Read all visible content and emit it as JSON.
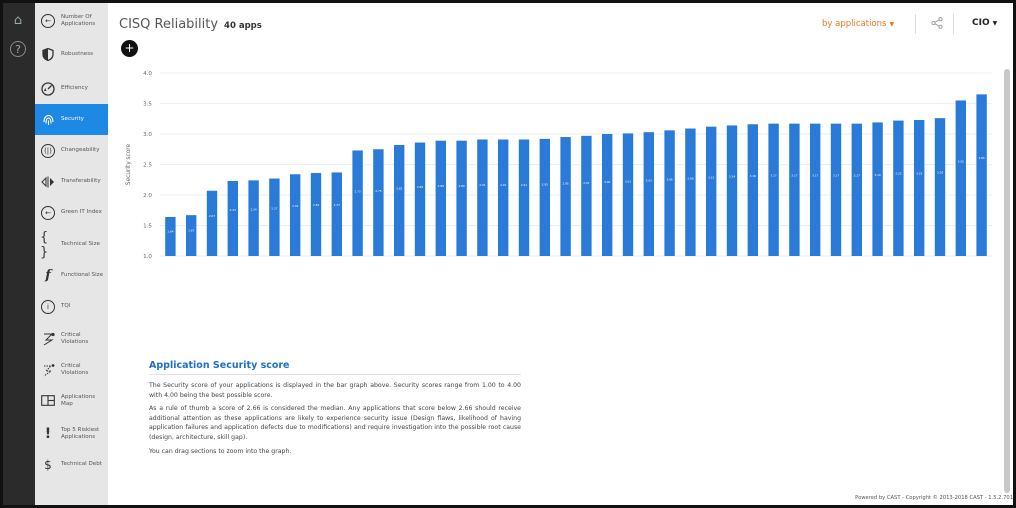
{
  "sidebar": {
    "items": [
      {
        "label": "Number Of Applications",
        "icon": "number-of-applications-icon"
      },
      {
        "label": "Robustness",
        "icon": "shield-icon"
      },
      {
        "label": "Efficiency",
        "icon": "speedometer-icon"
      },
      {
        "label": "Security",
        "icon": "fingerprint-icon",
        "active": true
      },
      {
        "label": "Changeability",
        "icon": "changeability-icon"
      },
      {
        "label": "Transferability",
        "icon": "transfer-icon"
      },
      {
        "label": "Green IT Index",
        "icon": "green-it-icon"
      },
      {
        "label": "Technical Size",
        "icon": "braces-icon"
      },
      {
        "label": "Functional Size",
        "icon": "function-icon"
      },
      {
        "label": "TQI",
        "icon": "tqi-icon"
      },
      {
        "label": "Critical Violations",
        "icon": "critical-violations-icon"
      },
      {
        "label": "Critical Violations",
        "icon": "critical-violations-trend-icon"
      },
      {
        "label": "Applications Map",
        "icon": "map-icon"
      },
      {
        "label": "Top 5 Riskiest Applications",
        "icon": "exclamation-icon"
      },
      {
        "label": "Technical Debt",
        "icon": "dollar-icon"
      }
    ]
  },
  "header": {
    "title": "CISQ Reliability",
    "app_count": "40 apps",
    "add_label": "+",
    "view_mode": "by applications",
    "role": "CIO"
  },
  "chart_data": {
    "type": "bar",
    "ylabel": "Security score",
    "ylim": [
      1.0,
      4.0
    ],
    "yticks": [
      "1.0",
      "1.5",
      "2.0",
      "2.5",
      "3.0",
      "3.5",
      "4.0"
    ],
    "categories": [
      "",
      "",
      "",
      "",
      "",
      "",
      "",
      "",
      "",
      "",
      "",
      "",
      "",
      "",
      "",
      "",
      "",
      "",
      "",
      "",
      "",
      "",
      "",
      "",
      "",
      "",
      "",
      "",
      "",
      "",
      "",
      "",
      "",
      "",
      "",
      "",
      "",
      "",
      "",
      ""
    ],
    "values": [
      1.64,
      1.67,
      2.07,
      2.23,
      2.24,
      2.27,
      2.34,
      2.36,
      2.37,
      2.73,
      2.75,
      2.82,
      2.86,
      2.89,
      2.89,
      2.91,
      2.91,
      2.91,
      2.92,
      2.95,
      2.97,
      3.0,
      3.01,
      3.03,
      3.06,
      3.09,
      3.12,
      3.14,
      3.16,
      3.17,
      3.17,
      3.17,
      3.17,
      3.17,
      3.19,
      3.22,
      3.23,
      3.26,
      3.55,
      3.65
    ],
    "grid": true,
    "bar_color": "#2a7ad8"
  },
  "description": {
    "heading": "Application Security score",
    "paragraphs": [
      "The Security score of your applications is displayed in the bar graph above. Security scores range from 1.00 to 4.00 with 4.00 being the best possible score.",
      "As a rule of thumb a score of 2.66 is considered the median. Any applications that score below 2.66 should receive additional attention as these applications are likely to experience security issue (Design flaws, likelihood of having application failures and application defects due to modifications) and require investigation into the possible root cause (design, architecture, skill gap).",
      "You can drag sections to zoom into the graph."
    ]
  },
  "footer": "Powered by CAST - Copyright © 2013-2018 CAST - 1.5.2.701"
}
